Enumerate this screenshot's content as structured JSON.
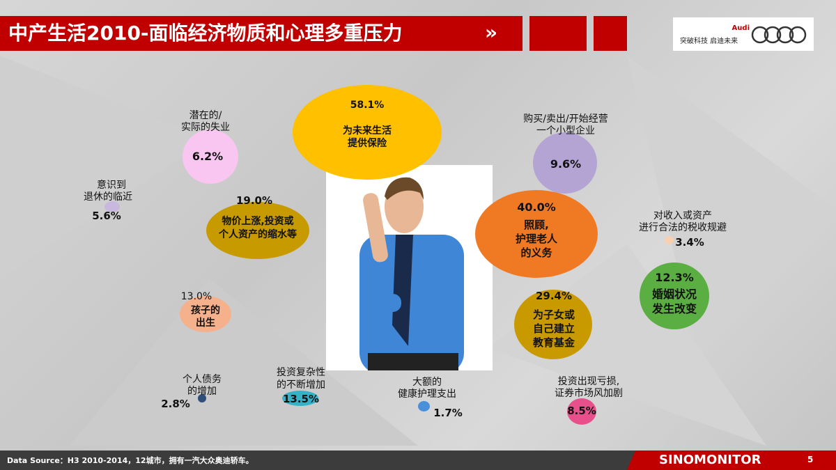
{
  "header": {
    "title": "中产生活2010-面临经济物质和心理多重压力",
    "chevron": "»",
    "logo_brand": "Audi",
    "logo_slogan": "突破科技 启迪未来"
  },
  "bubbles": [
    {
      "label": "为未来生活\n提供保险",
      "l1": "为未来生活",
      "l2": "提供保险",
      "value": "58.1%",
      "color": "#FFC000"
    },
    {
      "l1": "潜在的/",
      "l2": "实际的失业",
      "value": "6.2%",
      "color": "#F8C6F0"
    },
    {
      "l1": "意识到",
      "l2": "退休的临近",
      "value": "5.6%",
      "color": "#C9B8DE"
    },
    {
      "l1": "物价上涨,投资或",
      "l2": "个人资产的缩水等",
      "value": "19.0%",
      "color": "#C79A00"
    },
    {
      "l1": "购买/卖出/开始经营",
      "l2": "一个小型企业",
      "value": "9.6%",
      "color": "#B4A4D4"
    },
    {
      "l1": "照顾,",
      "l2": "护理老人",
      "l3": "的义务",
      "value": "40.0%",
      "color": "#F07A24"
    },
    {
      "l1": "对收入或资产",
      "l2": "进行合法的税收规避",
      "value": "3.4%",
      "color": "#F6D0B0"
    },
    {
      "l1": "婚姻状况",
      "l2": "发生改变",
      "value": "12.3%",
      "color": "#5BAE42"
    },
    {
      "l1": "为子女或",
      "l2": "自己建立",
      "l3": "教育基金",
      "value": "29.4%",
      "color": "#C89A00"
    },
    {
      "l1": "孩子的",
      "l2": "出生",
      "value": "13.0%",
      "color": "#F5B08C"
    },
    {
      "l1": "个人债务",
      "l2": "的增加",
      "value": "2.8%",
      "color": "#2E4F7A"
    },
    {
      "l1": "投资复杂性",
      "l2": "的不断增加",
      "value": "13.5%",
      "color": "#33B2C8"
    },
    {
      "l1": "大额的",
      "l2": "健康护理支出",
      "value": "1.7%",
      "color": "#4A90D9"
    },
    {
      "l1": "投资出现亏损,",
      "l2": "证券市场风加剧",
      "value": "8.5%",
      "color": "#E8508C"
    }
  ],
  "footer": {
    "source": "Data Source：H3 2010-2014，12城市，拥有一汽大众奥迪轿车。",
    "brand": "SINOMONITOR",
    "page": "5"
  }
}
